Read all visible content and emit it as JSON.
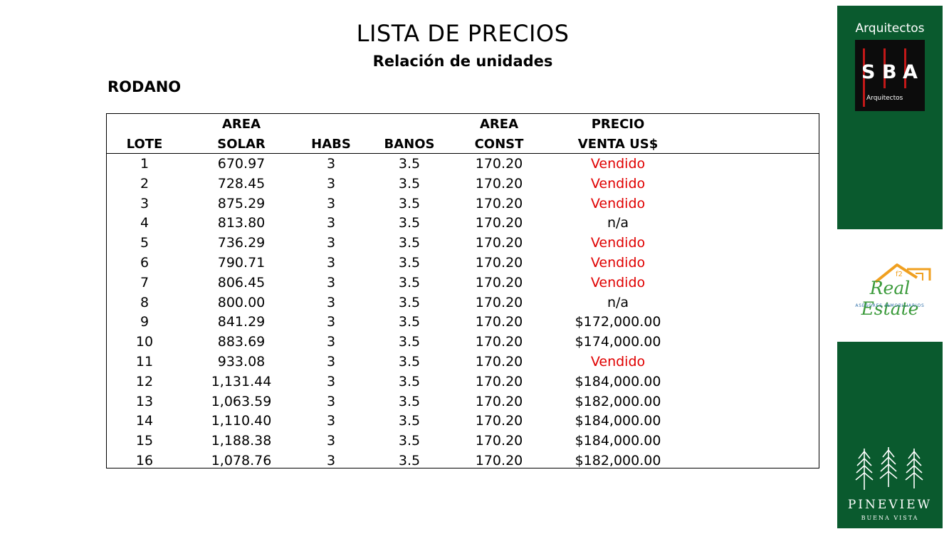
{
  "page": {
    "title": "LISTA DE PRECIOS",
    "subtitle": "Relación de unidades",
    "section": "RODANO"
  },
  "table": {
    "headers": [
      {
        "line1": "",
        "line2": "LOTE"
      },
      {
        "line1": "AREA",
        "line2": "SOLAR"
      },
      {
        "line1": "",
        "line2": "HABS"
      },
      {
        "line1": "",
        "line2": "BANOS"
      },
      {
        "line1": "AREA",
        "line2": "CONST"
      },
      {
        "line1": "PRECIO",
        "line2": "VENTA US$"
      }
    ],
    "rows": [
      {
        "lote": "1",
        "area_solar": "670.97",
        "habs": "3",
        "banos": "3.5",
        "area_const": "170.20",
        "precio": "Vendido",
        "sold": true
      },
      {
        "lote": "2",
        "area_solar": "728.45",
        "habs": "3",
        "banos": "3.5",
        "area_const": "170.20",
        "precio": "Vendido",
        "sold": true
      },
      {
        "lote": "3",
        "area_solar": "875.29",
        "habs": "3",
        "banos": "3.5",
        "area_const": "170.20",
        "precio": "Vendido",
        "sold": true
      },
      {
        "lote": "4",
        "area_solar": "813.80",
        "habs": "3",
        "banos": "3.5",
        "area_const": "170.20",
        "precio": "n/a",
        "sold": false
      },
      {
        "lote": "5",
        "area_solar": "736.29",
        "habs": "3",
        "banos": "3.5",
        "area_const": "170.20",
        "precio": "Vendido",
        "sold": true
      },
      {
        "lote": "6",
        "area_solar": "790.71",
        "habs": "3",
        "banos": "3.5",
        "area_const": "170.20",
        "precio": "Vendido",
        "sold": true
      },
      {
        "lote": "7",
        "area_solar": "806.45",
        "habs": "3",
        "banos": "3.5",
        "area_const": "170.20",
        "precio": "Vendido",
        "sold": true
      },
      {
        "lote": "8",
        "area_solar": "800.00",
        "habs": "3",
        "banos": "3.5",
        "area_const": "170.20",
        "precio": "n/a",
        "sold": false
      },
      {
        "lote": "9",
        "area_solar": "841.29",
        "habs": "3",
        "banos": "3.5",
        "area_const": "170.20",
        "precio": "$172,000.00",
        "sold": false
      },
      {
        "lote": "10",
        "area_solar": "883.69",
        "habs": "3",
        "banos": "3.5",
        "area_const": "170.20",
        "precio": "$174,000.00",
        "sold": false
      },
      {
        "lote": "11",
        "area_solar": "933.08",
        "habs": "3",
        "banos": "3.5",
        "area_const": "170.20",
        "precio": "Vendido",
        "sold": true
      },
      {
        "lote": "12",
        "area_solar": "1,131.44",
        "habs": "3",
        "banos": "3.5",
        "area_const": "170.20",
        "precio": "$184,000.00",
        "sold": false
      },
      {
        "lote": "13",
        "area_solar": "1,063.59",
        "habs": "3",
        "banos": "3.5",
        "area_const": "170.20",
        "precio": "$182,000.00",
        "sold": false
      },
      {
        "lote": "14",
        "area_solar": "1,110.40",
        "habs": "3",
        "banos": "3.5",
        "area_const": "170.20",
        "precio": "$184,000.00",
        "sold": false
      },
      {
        "lote": "15",
        "area_solar": "1,188.38",
        "habs": "3",
        "banos": "3.5",
        "area_const": "170.20",
        "precio": "$184,000.00",
        "sold": false
      },
      {
        "lote": "16",
        "area_solar": "1,078.76",
        "habs": "3",
        "banos": "3.5",
        "area_const": "170.20",
        "precio": "$182,000.00",
        "sold": false
      }
    ]
  },
  "sidebar": {
    "architects_label": "Arquitectos",
    "sba_logo": {
      "letters": [
        "S",
        "B",
        "A"
      ],
      "tagline": "Arquitectos",
      "icon": "sba-logo"
    },
    "real_estate_logo": {
      "brand": "Real Estate",
      "badge": "f2",
      "tagline": "ASESORES INMOBILIARIOS",
      "icon": "house-roof-icon"
    },
    "pineview_logo": {
      "name": "PINEVIEW",
      "tagline": "BUENA VISTA",
      "icon": "pine-trees-icon"
    }
  },
  "colors": {
    "sold": "#e00000",
    "sidebar_green": "#0a5a2e",
    "roof_orange": "#f0a020",
    "script_green": "#3a9a3a"
  }
}
